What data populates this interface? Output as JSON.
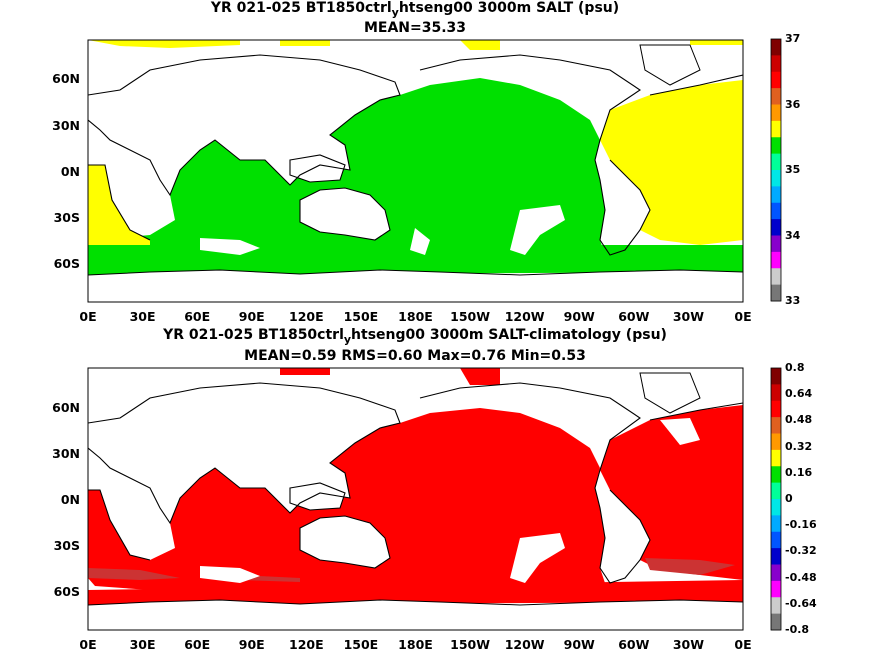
{
  "panels": [
    {
      "title_line1_pre": "YR 021-025 BT1850ctrl",
      "title_line1_sub": "y",
      "title_line1_post": "htseng00 3000m SALT (psu)",
      "title_line2": "MEAN=35.33",
      "colorbar_labels": [
        "37",
        "36",
        "35",
        "34",
        "33"
      ],
      "colorbar_colors": [
        "#7f0000",
        "#cc0000",
        "#ff0000",
        "#e06020",
        "#ff9900",
        "#ffff00",
        "#00e000",
        "#00ff99",
        "#00e6e6",
        "#00aaff",
        "#0055ff",
        "#0000cc",
        "#8800cc",
        "#ff00ff",
        "#cccccc",
        "#777777"
      ],
      "field": "salinity"
    },
    {
      "title_line1_pre": "YR 021-025 BT1850ctrl",
      "title_line1_sub": "y",
      "title_line1_post": "htseng00 3000m SALT-climatology (psu)",
      "title_line2": "MEAN=0.59   RMS=0.60   Max=0.76   Min=0.53",
      "colorbar_labels": [
        "0.8",
        "0.64",
        "0.48",
        "0.32",
        "0.16",
        "0",
        "-0.16",
        "-0.32",
        "-0.48",
        "-0.64",
        "-0.8"
      ],
      "colorbar_colors": [
        "#7f0000",
        "#cc0000",
        "#ff0000",
        "#e06020",
        "#ff9900",
        "#ffff00",
        "#00e000",
        "#00ff99",
        "#00e6e6",
        "#00aaff",
        "#0055ff",
        "#0000cc",
        "#8800cc",
        "#ff00ff",
        "#cccccc",
        "#777777"
      ],
      "field": "anomaly"
    }
  ],
  "lat_ticks": [
    "60N",
    "30N",
    "0N",
    "30S",
    "60S"
  ],
  "lon_ticks": [
    "0E",
    "30E",
    "60E",
    "90E",
    "120E",
    "150E",
    "180E",
    "150W",
    "120W",
    "90W",
    "60W",
    "30W",
    "0E"
  ],
  "colors": {
    "salinity_pacific_indian": "#00e000",
    "salinity_atlantic": "#ffff00",
    "anomaly_ocean": "#ff0000",
    "anomaly_dark": "#cc3333",
    "land": "#ffffff",
    "coast": "#000000"
  }
}
